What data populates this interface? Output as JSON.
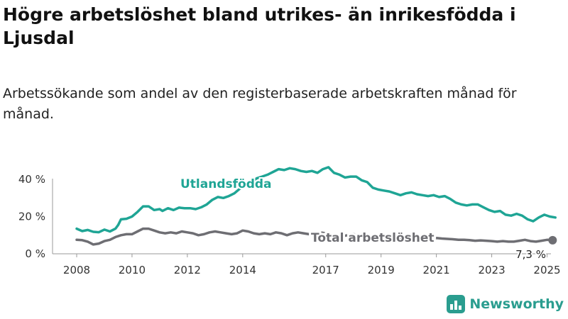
{
  "header": {
    "title": "Högre arbetslöshet bland utrikes- än inrikesfödda i Ljusdal",
    "subtitle": "Arbetssökande som andel av den registerbaserade arbetskraften månad för månad."
  },
  "brand": {
    "name": "Newsworthy",
    "icon": "newsworthy-logo-icon"
  },
  "colors": {
    "utlandsfodda": "#1fa595",
    "total": "#6e6e73",
    "axis": "#999999"
  },
  "chart_data": {
    "type": "line",
    "x_ticks": [
      "2008",
      "2010",
      "2012",
      "2014",
      "2017",
      "2019",
      "2021",
      "2023",
      "2025"
    ],
    "x_range": [
      2008,
      2025.5
    ],
    "y_ticks": [
      {
        "value": 0,
        "label": "0 %"
      },
      {
        "value": 20,
        "label": "20 %"
      },
      {
        "value": 40,
        "label": "40 %"
      }
    ],
    "ylim": [
      0,
      48
    ],
    "grid": false,
    "series": [
      {
        "name": "Utlandsfödda",
        "color": "#1fa595",
        "points": [
          [
            2008.0,
            13.5
          ],
          [
            2008.2,
            12.2
          ],
          [
            2008.4,
            12.8
          ],
          [
            2008.6,
            11.8
          ],
          [
            2008.8,
            11.6
          ],
          [
            2009.0,
            13.0
          ],
          [
            2009.2,
            12.0
          ],
          [
            2009.4,
            13.5
          ],
          [
            2009.5,
            15.5
          ],
          [
            2009.6,
            18.5
          ],
          [
            2009.8,
            18.8
          ],
          [
            2010.0,
            20.0
          ],
          [
            2010.2,
            22.5
          ],
          [
            2010.4,
            25.5
          ],
          [
            2010.6,
            25.5
          ],
          [
            2010.8,
            23.5
          ],
          [
            2011.0,
            24.0
          ],
          [
            2011.1,
            23.0
          ],
          [
            2011.3,
            24.5
          ],
          [
            2011.5,
            23.5
          ],
          [
            2011.7,
            24.8
          ],
          [
            2011.9,
            24.5
          ],
          [
            2012.1,
            24.5
          ],
          [
            2012.3,
            24.0
          ],
          [
            2012.5,
            25.0
          ],
          [
            2012.7,
            26.5
          ],
          [
            2012.9,
            29.0
          ],
          [
            2013.1,
            30.5
          ],
          [
            2013.3,
            30.0
          ],
          [
            2013.5,
            31.0
          ],
          [
            2013.7,
            32.5
          ],
          [
            2013.9,
            35.0
          ],
          [
            2014.1,
            37.0
          ],
          [
            2014.3,
            38.0
          ],
          [
            2014.5,
            40.5
          ],
          [
            2014.7,
            41.5
          ],
          [
            2014.9,
            42.5
          ],
          [
            2015.1,
            44.0
          ],
          [
            2015.3,
            45.5
          ],
          [
            2015.5,
            45.0
          ],
          [
            2015.7,
            46.0
          ],
          [
            2015.9,
            45.5
          ],
          [
            2016.1,
            44.5
          ],
          [
            2016.3,
            44.0
          ],
          [
            2016.5,
            44.5
          ],
          [
            2016.7,
            43.5
          ],
          [
            2016.9,
            45.5
          ],
          [
            2017.1,
            46.5
          ],
          [
            2017.3,
            43.5
          ],
          [
            2017.5,
            42.5
          ],
          [
            2017.7,
            41.0
          ],
          [
            2017.9,
            41.5
          ],
          [
            2018.1,
            41.5
          ],
          [
            2018.3,
            39.5
          ],
          [
            2018.5,
            38.5
          ],
          [
            2018.7,
            35.5
          ],
          [
            2018.9,
            34.5
          ],
          [
            2019.1,
            34.0
          ],
          [
            2019.3,
            33.5
          ],
          [
            2019.5,
            32.5
          ],
          [
            2019.7,
            31.5
          ],
          [
            2019.9,
            32.5
          ],
          [
            2020.1,
            33.0
          ],
          [
            2020.3,
            32.0
          ],
          [
            2020.5,
            31.5
          ],
          [
            2020.7,
            31.0
          ],
          [
            2020.9,
            31.5
          ],
          [
            2021.1,
            30.5
          ],
          [
            2021.3,
            31.0
          ],
          [
            2021.5,
            29.5
          ],
          [
            2021.7,
            27.5
          ],
          [
            2021.9,
            26.5
          ],
          [
            2022.1,
            26.0
          ],
          [
            2022.3,
            26.5
          ],
          [
            2022.5,
            26.5
          ],
          [
            2022.7,
            25.0
          ],
          [
            2022.9,
            23.5
          ],
          [
            2023.1,
            22.5
          ],
          [
            2023.3,
            23.0
          ],
          [
            2023.5,
            21.0
          ],
          [
            2023.7,
            20.5
          ],
          [
            2023.9,
            21.5
          ],
          [
            2024.1,
            20.5
          ],
          [
            2024.3,
            18.5
          ],
          [
            2024.5,
            17.5
          ],
          [
            2024.7,
            19.5
          ],
          [
            2024.9,
            21.0
          ],
          [
            2025.1,
            20.0
          ],
          [
            2025.3,
            19.5
          ]
        ]
      },
      {
        "name": "Total arbetslöshet",
        "color": "#6e6e73",
        "points": [
          [
            2008.0,
            7.5
          ],
          [
            2008.2,
            7.3
          ],
          [
            2008.4,
            6.5
          ],
          [
            2008.6,
            5.0
          ],
          [
            2008.8,
            5.5
          ],
          [
            2009.0,
            6.8
          ],
          [
            2009.2,
            7.5
          ],
          [
            2009.4,
            9.0
          ],
          [
            2009.6,
            10.0
          ],
          [
            2009.8,
            10.5
          ],
          [
            2010.0,
            10.5
          ],
          [
            2010.2,
            12.0
          ],
          [
            2010.4,
            13.5
          ],
          [
            2010.6,
            13.5
          ],
          [
            2010.8,
            12.5
          ],
          [
            2011.0,
            11.5
          ],
          [
            2011.2,
            11.0
          ],
          [
            2011.4,
            11.5
          ],
          [
            2011.6,
            11.0
          ],
          [
            2011.8,
            12.0
          ],
          [
            2012.0,
            11.5
          ],
          [
            2012.2,
            11.0
          ],
          [
            2012.4,
            10.0
          ],
          [
            2012.6,
            10.5
          ],
          [
            2012.8,
            11.5
          ],
          [
            2013.0,
            12.0
          ],
          [
            2013.2,
            11.5
          ],
          [
            2013.4,
            11.0
          ],
          [
            2013.6,
            10.5
          ],
          [
            2013.8,
            11.0
          ],
          [
            2014.0,
            12.5
          ],
          [
            2014.2,
            12.0
          ],
          [
            2014.4,
            11.0
          ],
          [
            2014.6,
            10.5
          ],
          [
            2014.8,
            11.0
          ],
          [
            2015.0,
            10.5
          ],
          [
            2015.2,
            11.5
          ],
          [
            2015.4,
            11.0
          ],
          [
            2015.6,
            10.0
          ],
          [
            2015.8,
            11.0
          ],
          [
            2016.0,
            11.5
          ],
          [
            2016.2,
            11.0
          ],
          [
            2016.4,
            10.5
          ],
          [
            2016.6,
            11.0
          ],
          [
            2016.8,
            11.5
          ],
          [
            2017.0,
            11.0
          ],
          [
            2017.2,
            10.5
          ],
          [
            2017.4,
            10.0
          ],
          [
            2017.6,
            9.5
          ],
          [
            2017.8,
            10.0
          ],
          [
            2018.0,
            10.5
          ],
          [
            2018.2,
            10.0
          ],
          [
            2018.4,
            9.5
          ],
          [
            2018.6,
            9.0
          ],
          [
            2018.8,
            8.5
          ],
          [
            2019.0,
            8.8
          ],
          [
            2019.2,
            8.5
          ],
          [
            2019.4,
            8.0
          ],
          [
            2019.6,
            8.3
          ],
          [
            2019.8,
            8.5
          ],
          [
            2020.0,
            8.8
          ],
          [
            2020.2,
            8.5
          ],
          [
            2020.4,
            8.2
          ],
          [
            2020.6,
            8.0
          ],
          [
            2020.8,
            8.3
          ],
          [
            2021.0,
            8.5
          ],
          [
            2021.2,
            8.2
          ],
          [
            2021.4,
            8.0
          ],
          [
            2021.6,
            7.8
          ],
          [
            2021.8,
            7.5
          ],
          [
            2022.0,
            7.5
          ],
          [
            2022.2,
            7.3
          ],
          [
            2022.4,
            7.0
          ],
          [
            2022.6,
            7.2
          ],
          [
            2022.8,
            7.0
          ],
          [
            2023.0,
            6.8
          ],
          [
            2023.2,
            6.5
          ],
          [
            2023.4,
            6.8
          ],
          [
            2023.6,
            6.5
          ],
          [
            2023.8,
            6.5
          ],
          [
            2024.0,
            7.0
          ],
          [
            2024.2,
            7.5
          ],
          [
            2024.4,
            6.8
          ],
          [
            2024.6,
            6.5
          ],
          [
            2024.8,
            7.0
          ],
          [
            2025.0,
            7.5
          ],
          [
            2025.2,
            7.3
          ]
        ]
      }
    ],
    "annotations": {
      "end_value_label": "7,3 %"
    }
  }
}
